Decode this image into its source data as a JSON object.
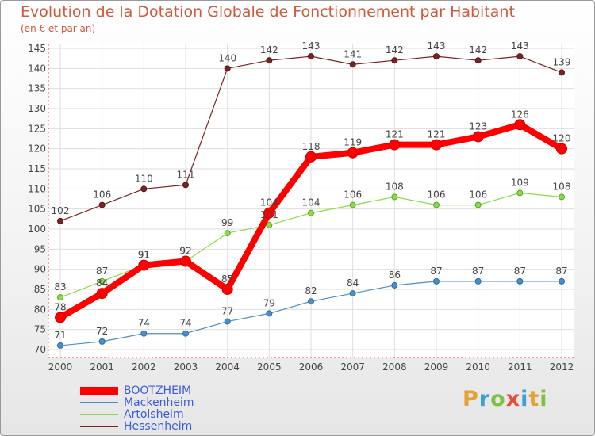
{
  "title": "Evolution de la Dotation Globale de Fonctionnement par Habitant",
  "subtitle": "(en € et par an)",
  "logo": {
    "letters": [
      "P",
      "r",
      "o",
      "x",
      "i",
      "t",
      "i"
    ],
    "colors": [
      "#e8a030",
      "#3aa0d8",
      "#7dc242",
      "#e84c3d",
      "#3aa0d8",
      "#e8a030",
      "#7dc242"
    ]
  },
  "chart_data": {
    "type": "line",
    "title": "Evolution de la Dotation Globale de Fonctionnement par Habitant",
    "subtitle": "(en € et par an)",
    "x": [
      "2000",
      "2001",
      "2002",
      "2003",
      "2004",
      "2005",
      "2006",
      "2007",
      "2008",
      "2009",
      "2010",
      "2011",
      "2012"
    ],
    "ylim": [
      70,
      145
    ],
    "yticks": [
      "70",
      "75",
      "80",
      "85",
      "90",
      "95",
      "100",
      "105",
      "110",
      "115",
      "120",
      "125",
      "130",
      "135",
      "140",
      "145"
    ],
    "grid": true,
    "legend_position": "bottom-left",
    "series": [
      {
        "name": "BOOTZHEIM",
        "color": "#ff0000",
        "values": [
          78,
          84,
          91,
          92,
          85,
          104,
          118,
          119,
          121,
          121,
          123,
          126,
          120
        ]
      },
      {
        "name": "Mackenheim",
        "color": "#4a8fc9",
        "values": [
          71,
          72,
          74,
          74,
          77,
          79,
          82,
          84,
          86,
          87,
          87,
          87,
          87
        ]
      },
      {
        "name": "Artolsheim",
        "color": "#88dd44",
        "values": [
          83,
          87,
          91,
          92,
          99,
          101,
          104,
          106,
          108,
          106,
          106,
          109,
          108
        ]
      },
      {
        "name": "Hessenheim",
        "color": "#7b2323",
        "values": [
          102,
          106,
          110,
          111,
          140,
          142,
          143,
          141,
          142,
          143,
          142,
          143,
          139
        ]
      }
    ]
  }
}
